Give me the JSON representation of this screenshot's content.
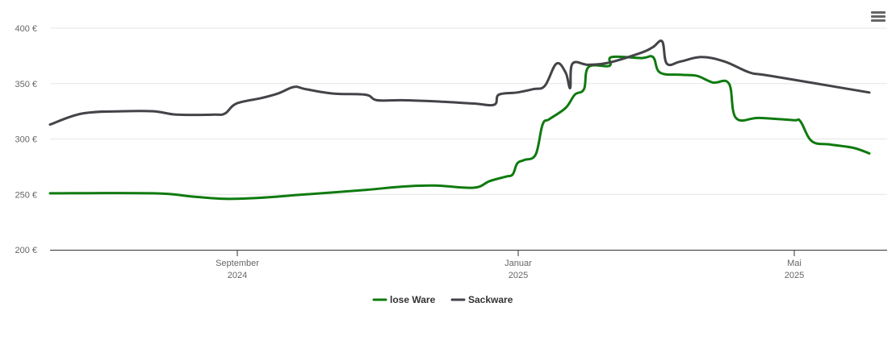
{
  "chart_data": {
    "type": "line",
    "title": "",
    "xlabel": "",
    "ylabel": "",
    "ylim": [
      200,
      400
    ],
    "yticks": [
      "200 €",
      "250 €",
      "300 €",
      "350 €",
      "400 €"
    ],
    "xticks": [
      {
        "month": "September",
        "year": "2024"
      },
      {
        "month": "Januar",
        "year": "2025"
      },
      {
        "month": "Mai",
        "year": "2025"
      }
    ],
    "grid": true,
    "legend_position": "bottom",
    "series": [
      {
        "name": "lose Ware",
        "color": "#0f7a0f",
        "points": [
          [
            "2024-07-01",
            251
          ],
          [
            "2024-08-15",
            251
          ],
          [
            "2024-09-01",
            248
          ],
          [
            "2024-09-15",
            246
          ],
          [
            "2024-10-01",
            247
          ],
          [
            "2024-10-20",
            250
          ],
          [
            "2024-11-15",
            254
          ],
          [
            "2024-12-01",
            257
          ],
          [
            "2024-12-15",
            258
          ],
          [
            "2025-01-01",
            256
          ],
          [
            "2025-01-08",
            262
          ],
          [
            "2025-01-15",
            266
          ],
          [
            "2025-01-18",
            268
          ],
          [
            "2025-01-20",
            278
          ],
          [
            "2025-01-23",
            281
          ],
          [
            "2025-01-28",
            286
          ],
          [
            "2025-01-31",
            313
          ],
          [
            "2025-02-03",
            318
          ],
          [
            "2025-02-10",
            328
          ],
          [
            "2025-02-14",
            340
          ],
          [
            "2025-02-18",
            345
          ],
          [
            "2025-02-20",
            365
          ],
          [
            "2025-03-01",
            366
          ],
          [
            "2025-03-02",
            374
          ],
          [
            "2025-03-15",
            373
          ],
          [
            "2025-03-20",
            374
          ],
          [
            "2025-03-23",
            360
          ],
          [
            "2025-04-01",
            358
          ],
          [
            "2025-04-08",
            357
          ],
          [
            "2025-04-15",
            351
          ],
          [
            "2025-04-22",
            350
          ],
          [
            "2025-04-25",
            319
          ],
          [
            "2025-05-05",
            319
          ],
          [
            "2025-05-20",
            317
          ],
          [
            "2025-05-23",
            316
          ],
          [
            "2025-05-28",
            298
          ],
          [
            "2025-06-05",
            295
          ],
          [
            "2025-06-15",
            292
          ],
          [
            "2025-06-22",
            287
          ]
        ]
      },
      {
        "name": "Sackware",
        "color": "#434348",
        "points": [
          [
            "2024-07-01",
            313
          ],
          [
            "2024-07-15",
            323
          ],
          [
            "2024-08-01",
            325
          ],
          [
            "2024-08-15",
            325
          ],
          [
            "2024-08-25",
            322
          ],
          [
            "2024-09-10",
            322
          ],
          [
            "2024-09-15",
            323
          ],
          [
            "2024-09-20",
            332
          ],
          [
            "2024-10-01",
            337
          ],
          [
            "2024-10-08",
            341
          ],
          [
            "2024-10-15",
            347
          ],
          [
            "2024-10-20",
            345
          ],
          [
            "2024-11-01",
            341
          ],
          [
            "2024-11-15",
            340
          ],
          [
            "2024-11-20",
            335
          ],
          [
            "2024-12-01",
            335
          ],
          [
            "2024-12-15",
            334
          ],
          [
            "2025-01-01",
            332
          ],
          [
            "2025-01-10",
            331
          ],
          [
            "2025-01-12",
            340
          ],
          [
            "2025-01-20",
            342
          ],
          [
            "2025-01-27",
            345
          ],
          [
            "2025-02-01",
            348
          ],
          [
            "2025-02-06",
            368
          ],
          [
            "2025-02-10",
            360
          ],
          [
            "2025-02-12",
            346
          ],
          [
            "2025-02-13",
            368
          ],
          [
            "2025-02-20",
            367
          ],
          [
            "2025-03-01",
            369
          ],
          [
            "2025-03-15",
            378
          ],
          [
            "2025-03-20",
            383
          ],
          [
            "2025-03-24",
            388
          ],
          [
            "2025-03-26",
            368
          ],
          [
            "2025-04-01",
            370
          ],
          [
            "2025-04-10",
            374
          ],
          [
            "2025-04-20",
            370
          ],
          [
            "2025-05-01",
            360
          ],
          [
            "2025-05-10",
            357
          ],
          [
            "2025-06-22",
            342
          ]
        ]
      }
    ]
  }
}
